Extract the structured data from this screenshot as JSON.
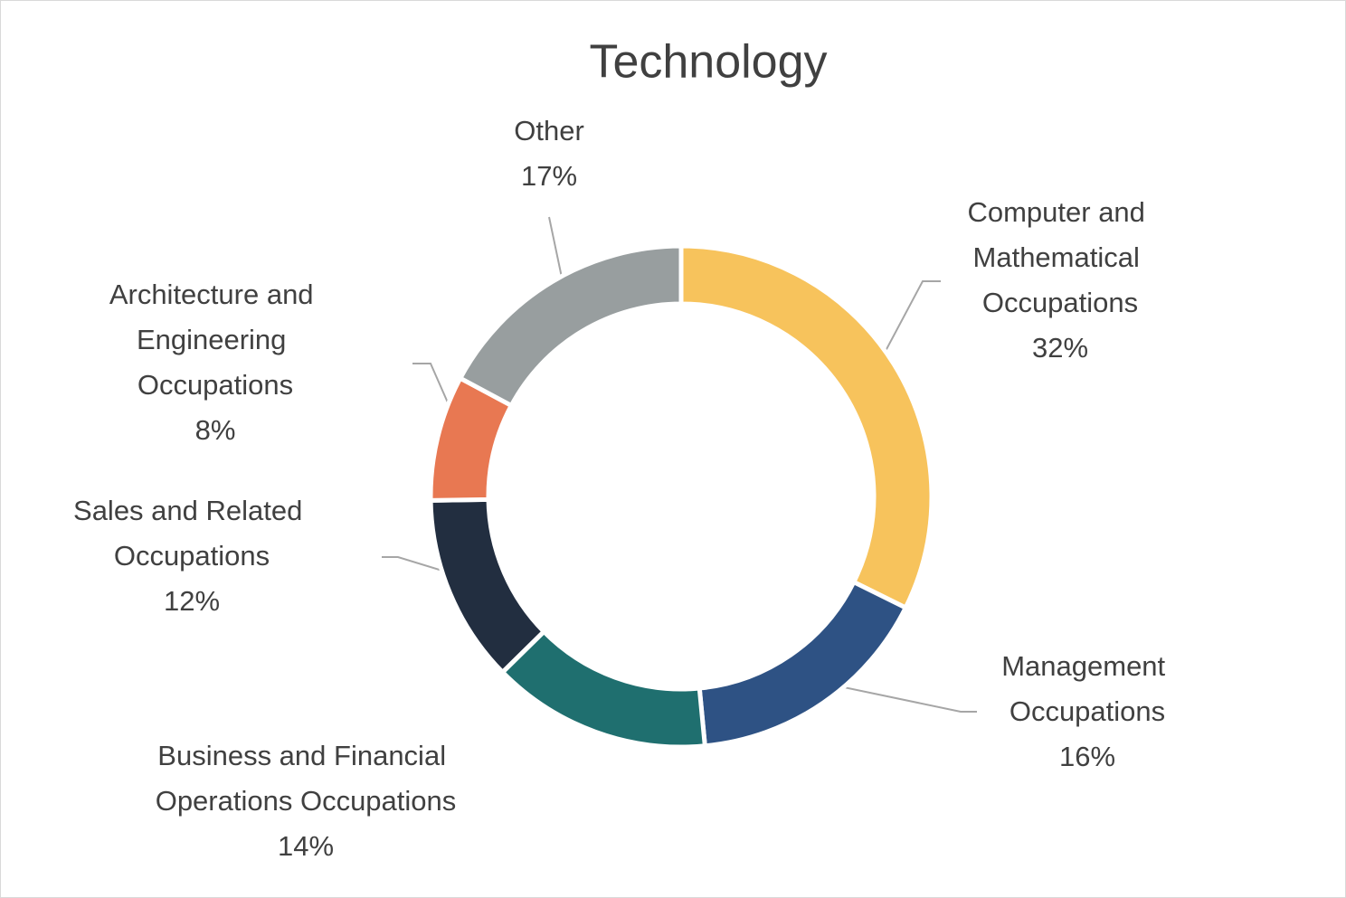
{
  "chart_data": {
    "type": "donut",
    "title": "Technology",
    "categories": [
      "Computer and Mathematical Occupations",
      "Management Occupations",
      "Business and Financial Operations Occupations",
      "Sales and Related Occupations",
      "Architecture and Engineering Occupations",
      "Other"
    ],
    "values": [
      32,
      16,
      14,
      12,
      8,
      17
    ],
    "value_labels": [
      "32%",
      "16%",
      "14%",
      "12%",
      "8%",
      "17%"
    ],
    "colors": [
      "#F7C35C",
      "#2E5284",
      "#1F6F6F",
      "#222E40",
      "#E87852",
      "#989E9F"
    ]
  }
}
